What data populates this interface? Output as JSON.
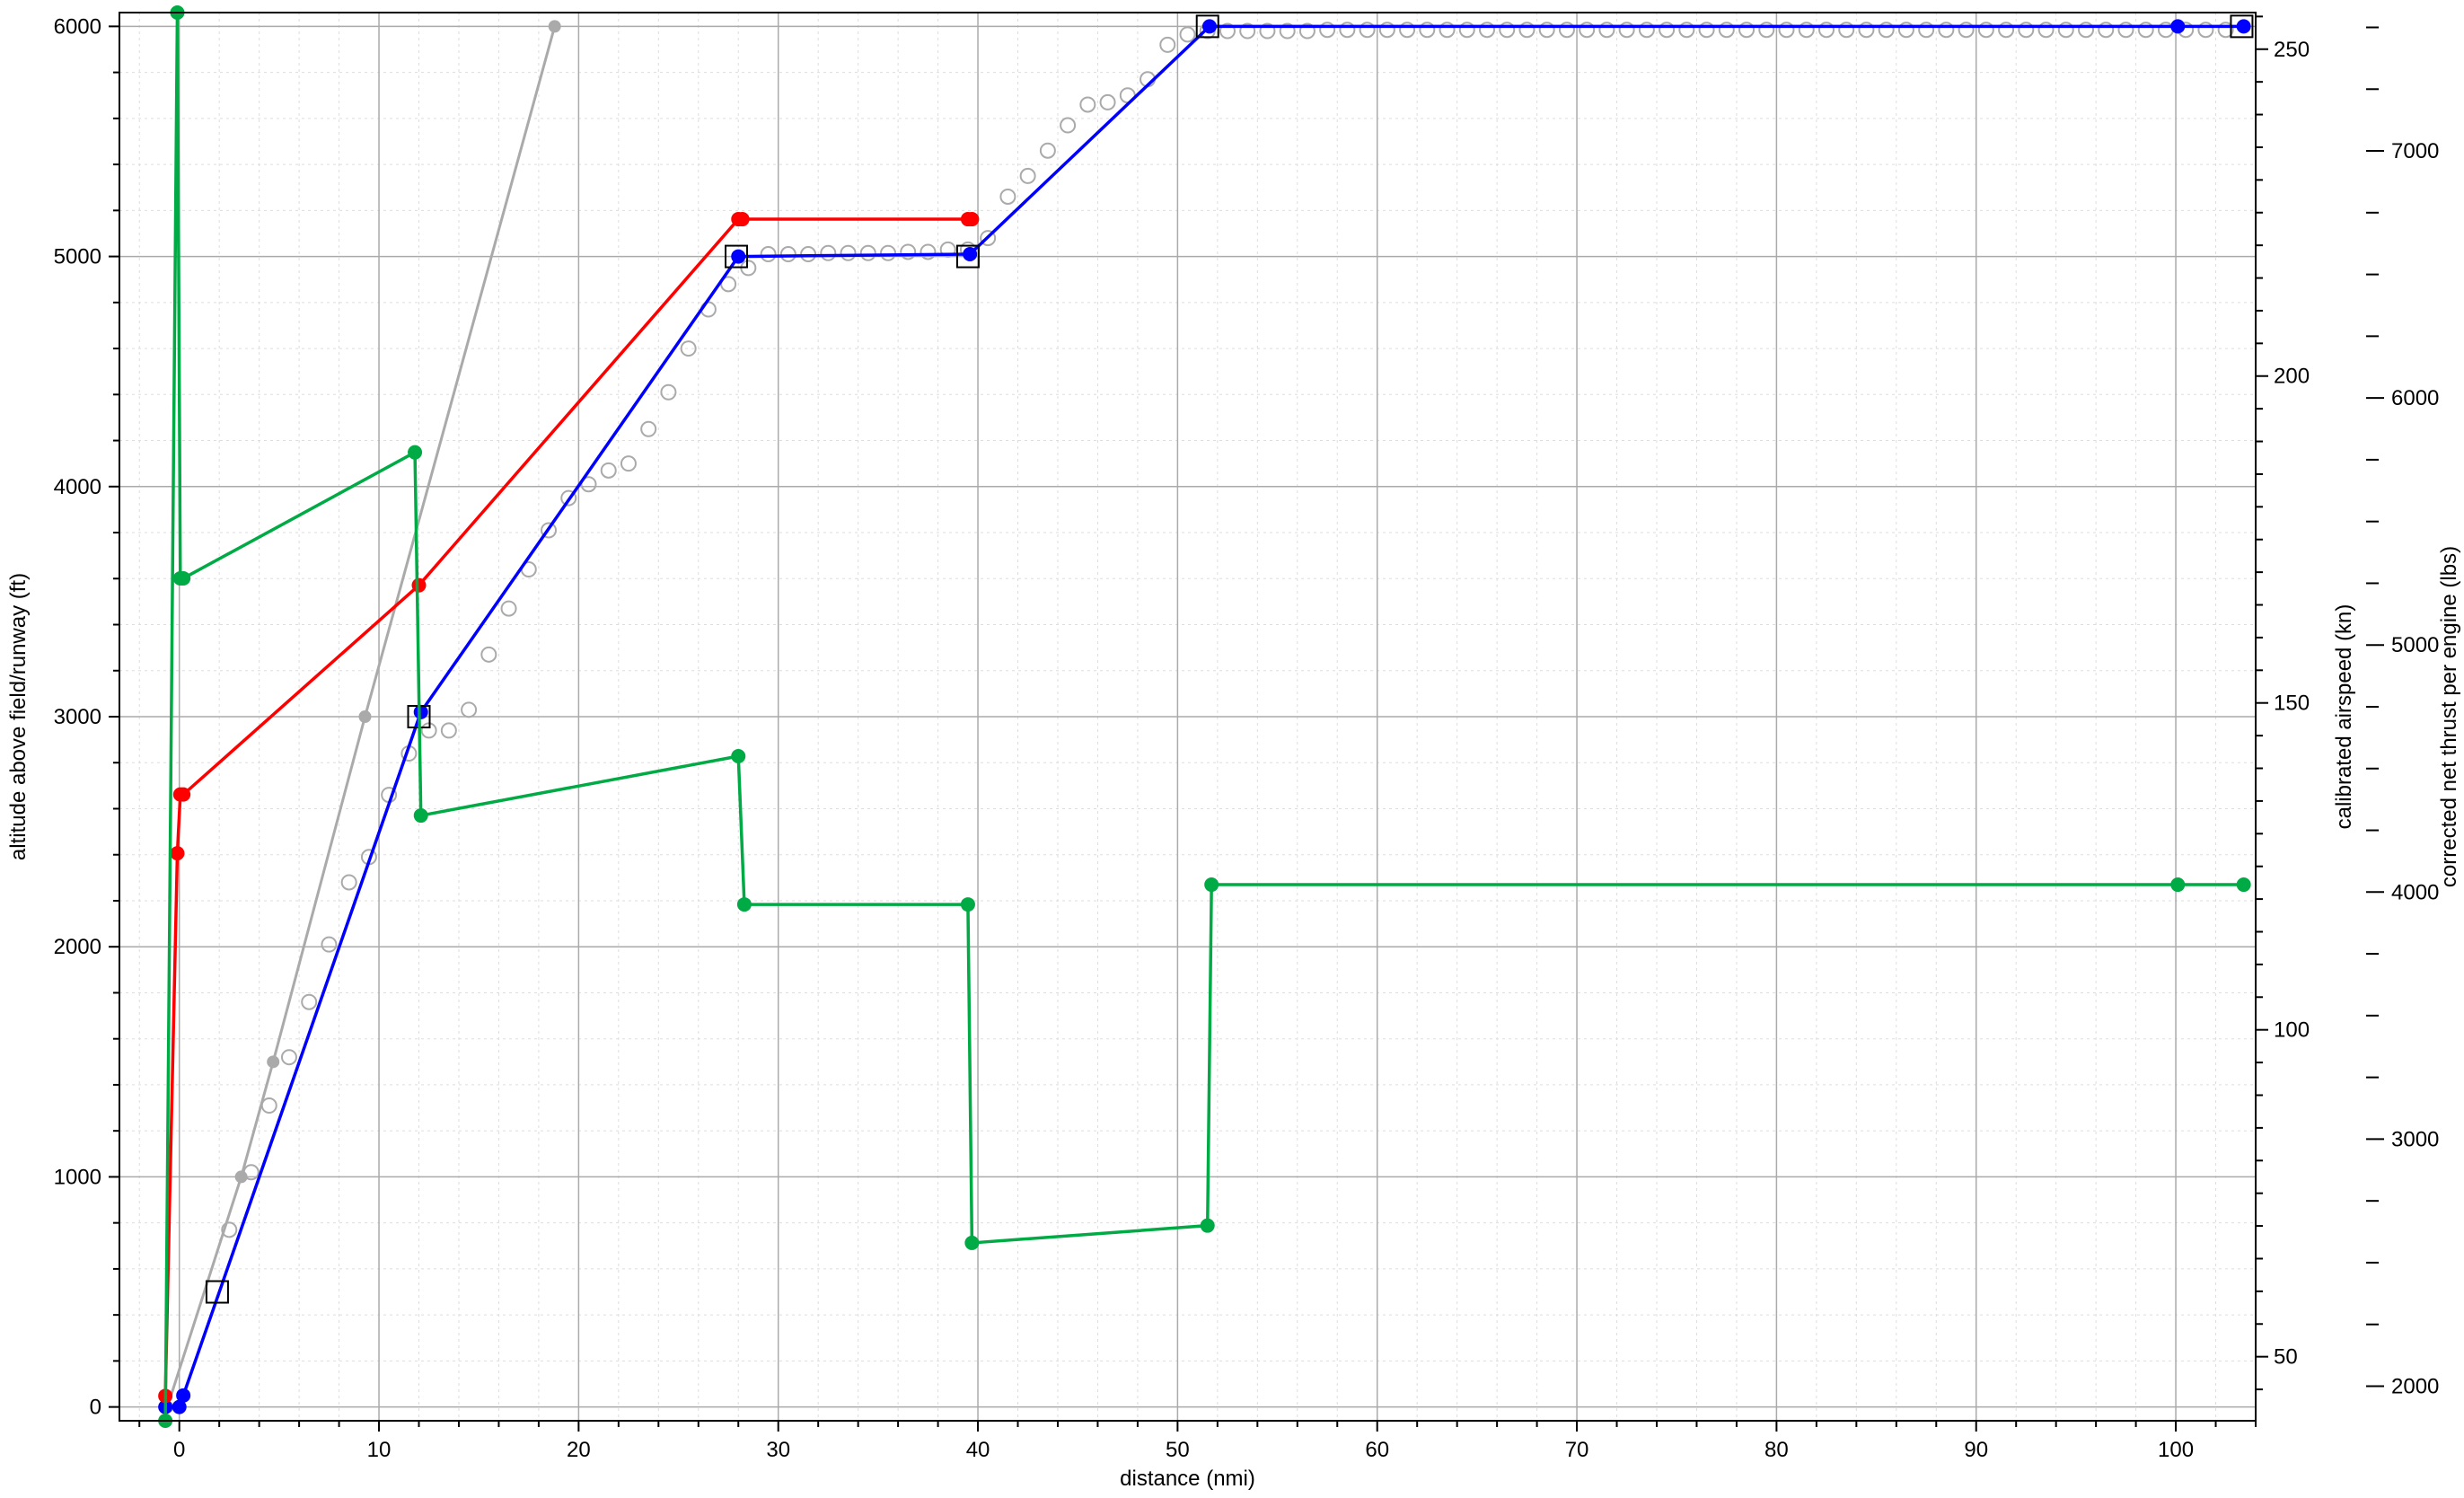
{
  "chart_data": {
    "type": "line",
    "title": "",
    "xlabel": "distance (nmi)",
    "ylabel": "altitude above field/runway (ft)",
    "y2label": "calibrated airspeed (kn)",
    "y3label": "corrected net thrust per engine (lbs)",
    "xlim": [
      -3,
      104
    ],
    "ylim": [
      -60,
      6060
    ],
    "y2lim": [
      40.2,
      255.6
    ],
    "y3lim": [
      1860,
      7560
    ],
    "x_ticks": [
      0,
      10,
      20,
      30,
      40,
      50,
      60,
      70,
      80,
      90,
      100
    ],
    "x_tick_labels": [
      "0",
      "10",
      "20",
      "30",
      "40",
      "50",
      "60",
      "70",
      "80",
      "90",
      "100"
    ],
    "y_ticks": [
      0,
      1000,
      2000,
      3000,
      4000,
      5000,
      6000
    ],
    "y_tick_labels": [
      "0",
      "1000",
      "2000",
      "3000",
      "4000",
      "5000",
      "6000"
    ],
    "y2_ticks": [
      50,
      100,
      150,
      200,
      250
    ],
    "y2_tick_labels": [
      "50",
      "100",
      "150",
      "200",
      "250"
    ],
    "y3_ticks": [
      2000,
      3000,
      4000,
      5000,
      6000,
      7000
    ],
    "y3_tick_labels": [
      "2000",
      "3000",
      "4000",
      "5000",
      "6000",
      "7000"
    ],
    "grid": true,
    "series": [
      {
        "color": "#aaaaaa",
        "axis": "altitude",
        "marker": "dot",
        "x": [
          -0.6,
          3.1,
          4.7,
          9.3,
          18.8
        ],
        "y": [
          0,
          1000,
          1500,
          3000,
          6000
        ]
      },
      {
        "color": "#aaaaaa",
        "axis": "altitude",
        "marker": "open-circle",
        "x": [
          2.5,
          3.6,
          4.5,
          5.5,
          6.5,
          7.5,
          8.5,
          9.5,
          10.5,
          11.5,
          12.5,
          13.5,
          14.5,
          15.5,
          16.5,
          17.5,
          18.5,
          19.5,
          20.5,
          21.5,
          22.5,
          23.5,
          24.5,
          25.5,
          26.5,
          27.5,
          28.5,
          29.5,
          30.5,
          31.5,
          32.5,
          33.5,
          34.5,
          35.5,
          36.5,
          37.5,
          38.5,
          39.5,
          40.5,
          41.5,
          42.5,
          43.5,
          44.5,
          45.5,
          46.5,
          47.5,
          48.5,
          49.5,
          50.5,
          51.5,
          52.5,
          53.5,
          54.5,
          55.5,
          56.5,
          57.5,
          58.5,
          59.5,
          60.5,
          61.5,
          62.5,
          63.5,
          64.5,
          65.5,
          66.5,
          67.5,
          68.5,
          69.5,
          70.5,
          71.5,
          72.5,
          73.5,
          74.5,
          75.5,
          76.5,
          77.5,
          78.5,
          79.5,
          80.5,
          81.5,
          82.5,
          83.5,
          84.5,
          85.5,
          86.5,
          87.5,
          88.5,
          89.5,
          90.5,
          91.5,
          92.5,
          93.5,
          94.5,
          95.5,
          96.5,
          97.5,
          98.5,
          99.5,
          100.5,
          101.5,
          102.5
        ],
        "y": [
          770,
          1020,
          1310,
          1520,
          1760,
          2010,
          2280,
          2390,
          2660,
          2840,
          2940,
          2940,
          3030,
          3270,
          3470,
          3640,
          3810,
          3950,
          4010,
          4070,
          4100,
          4250,
          4410,
          4600,
          4770,
          4880,
          4950,
          5010,
          5010,
          5010,
          5015,
          5015,
          5015,
          5015,
          5020,
          5020,
          5030,
          5030,
          5080,
          5260,
          5350,
          5460,
          5570,
          5660,
          5670,
          5700,
          5770,
          5920,
          5965,
          5980,
          5980,
          5980,
          5980,
          5980,
          5980,
          5985,
          5985,
          5985,
          5985,
          5985,
          5985,
          5985,
          5985,
          5985,
          5985,
          5985,
          5985,
          5985,
          5985,
          5985,
          5985,
          5985,
          5985,
          5985,
          5985,
          5985,
          5985,
          5985,
          5985,
          5985,
          5985,
          5985,
          5985,
          5985,
          5985,
          5985,
          5985,
          5985,
          5985,
          5985,
          5985,
          5985,
          5985,
          5985,
          5985,
          5985,
          5985,
          5985,
          5985,
          5985,
          5985
        ]
      },
      {
        "color": "#0000ff",
        "axis": "altitude",
        "marker": "dot",
        "x": [
          -0.7,
          0,
          0.2,
          12.1,
          28.0,
          39.6,
          51.6,
          100.1,
          103.4
        ],
        "y": [
          0,
          0,
          50,
          3020,
          5000,
          5010,
          6000,
          6000,
          6000
        ]
      },
      {
        "color": "#000000",
        "axis": "altitude",
        "marker": "open-square",
        "x": [
          1.9,
          12.0,
          27.9,
          39.5,
          51.5,
          103.3
        ],
        "y": [
          500,
          3000,
          5000,
          5000,
          6000,
          6000
        ]
      },
      {
        "color": "#ff0000",
        "axis": "airspeed",
        "marker": "dot",
        "x": [
          -0.7,
          -0.1,
          0.05,
          0.2,
          12.0,
          28.0,
          28.2,
          39.5,
          39.7
        ],
        "y": [
          44,
          127,
          136,
          136,
          168,
          224,
          224,
          224,
          224
        ]
      },
      {
        "color": "#00aa44",
        "axis": "thrust",
        "marker": "dot",
        "x": [
          -0.7,
          -0.1,
          0.05,
          0.2,
          11.8,
          12.1,
          28.0,
          28.3,
          39.5,
          39.7,
          51.5,
          51.7,
          100.1,
          103.4
        ],
        "y": [
          1860,
          7560,
          5270,
          5270,
          5780,
          4310,
          4550,
          3950,
          3950,
          2580,
          2650,
          4030,
          4030,
          4030
        ]
      }
    ]
  }
}
